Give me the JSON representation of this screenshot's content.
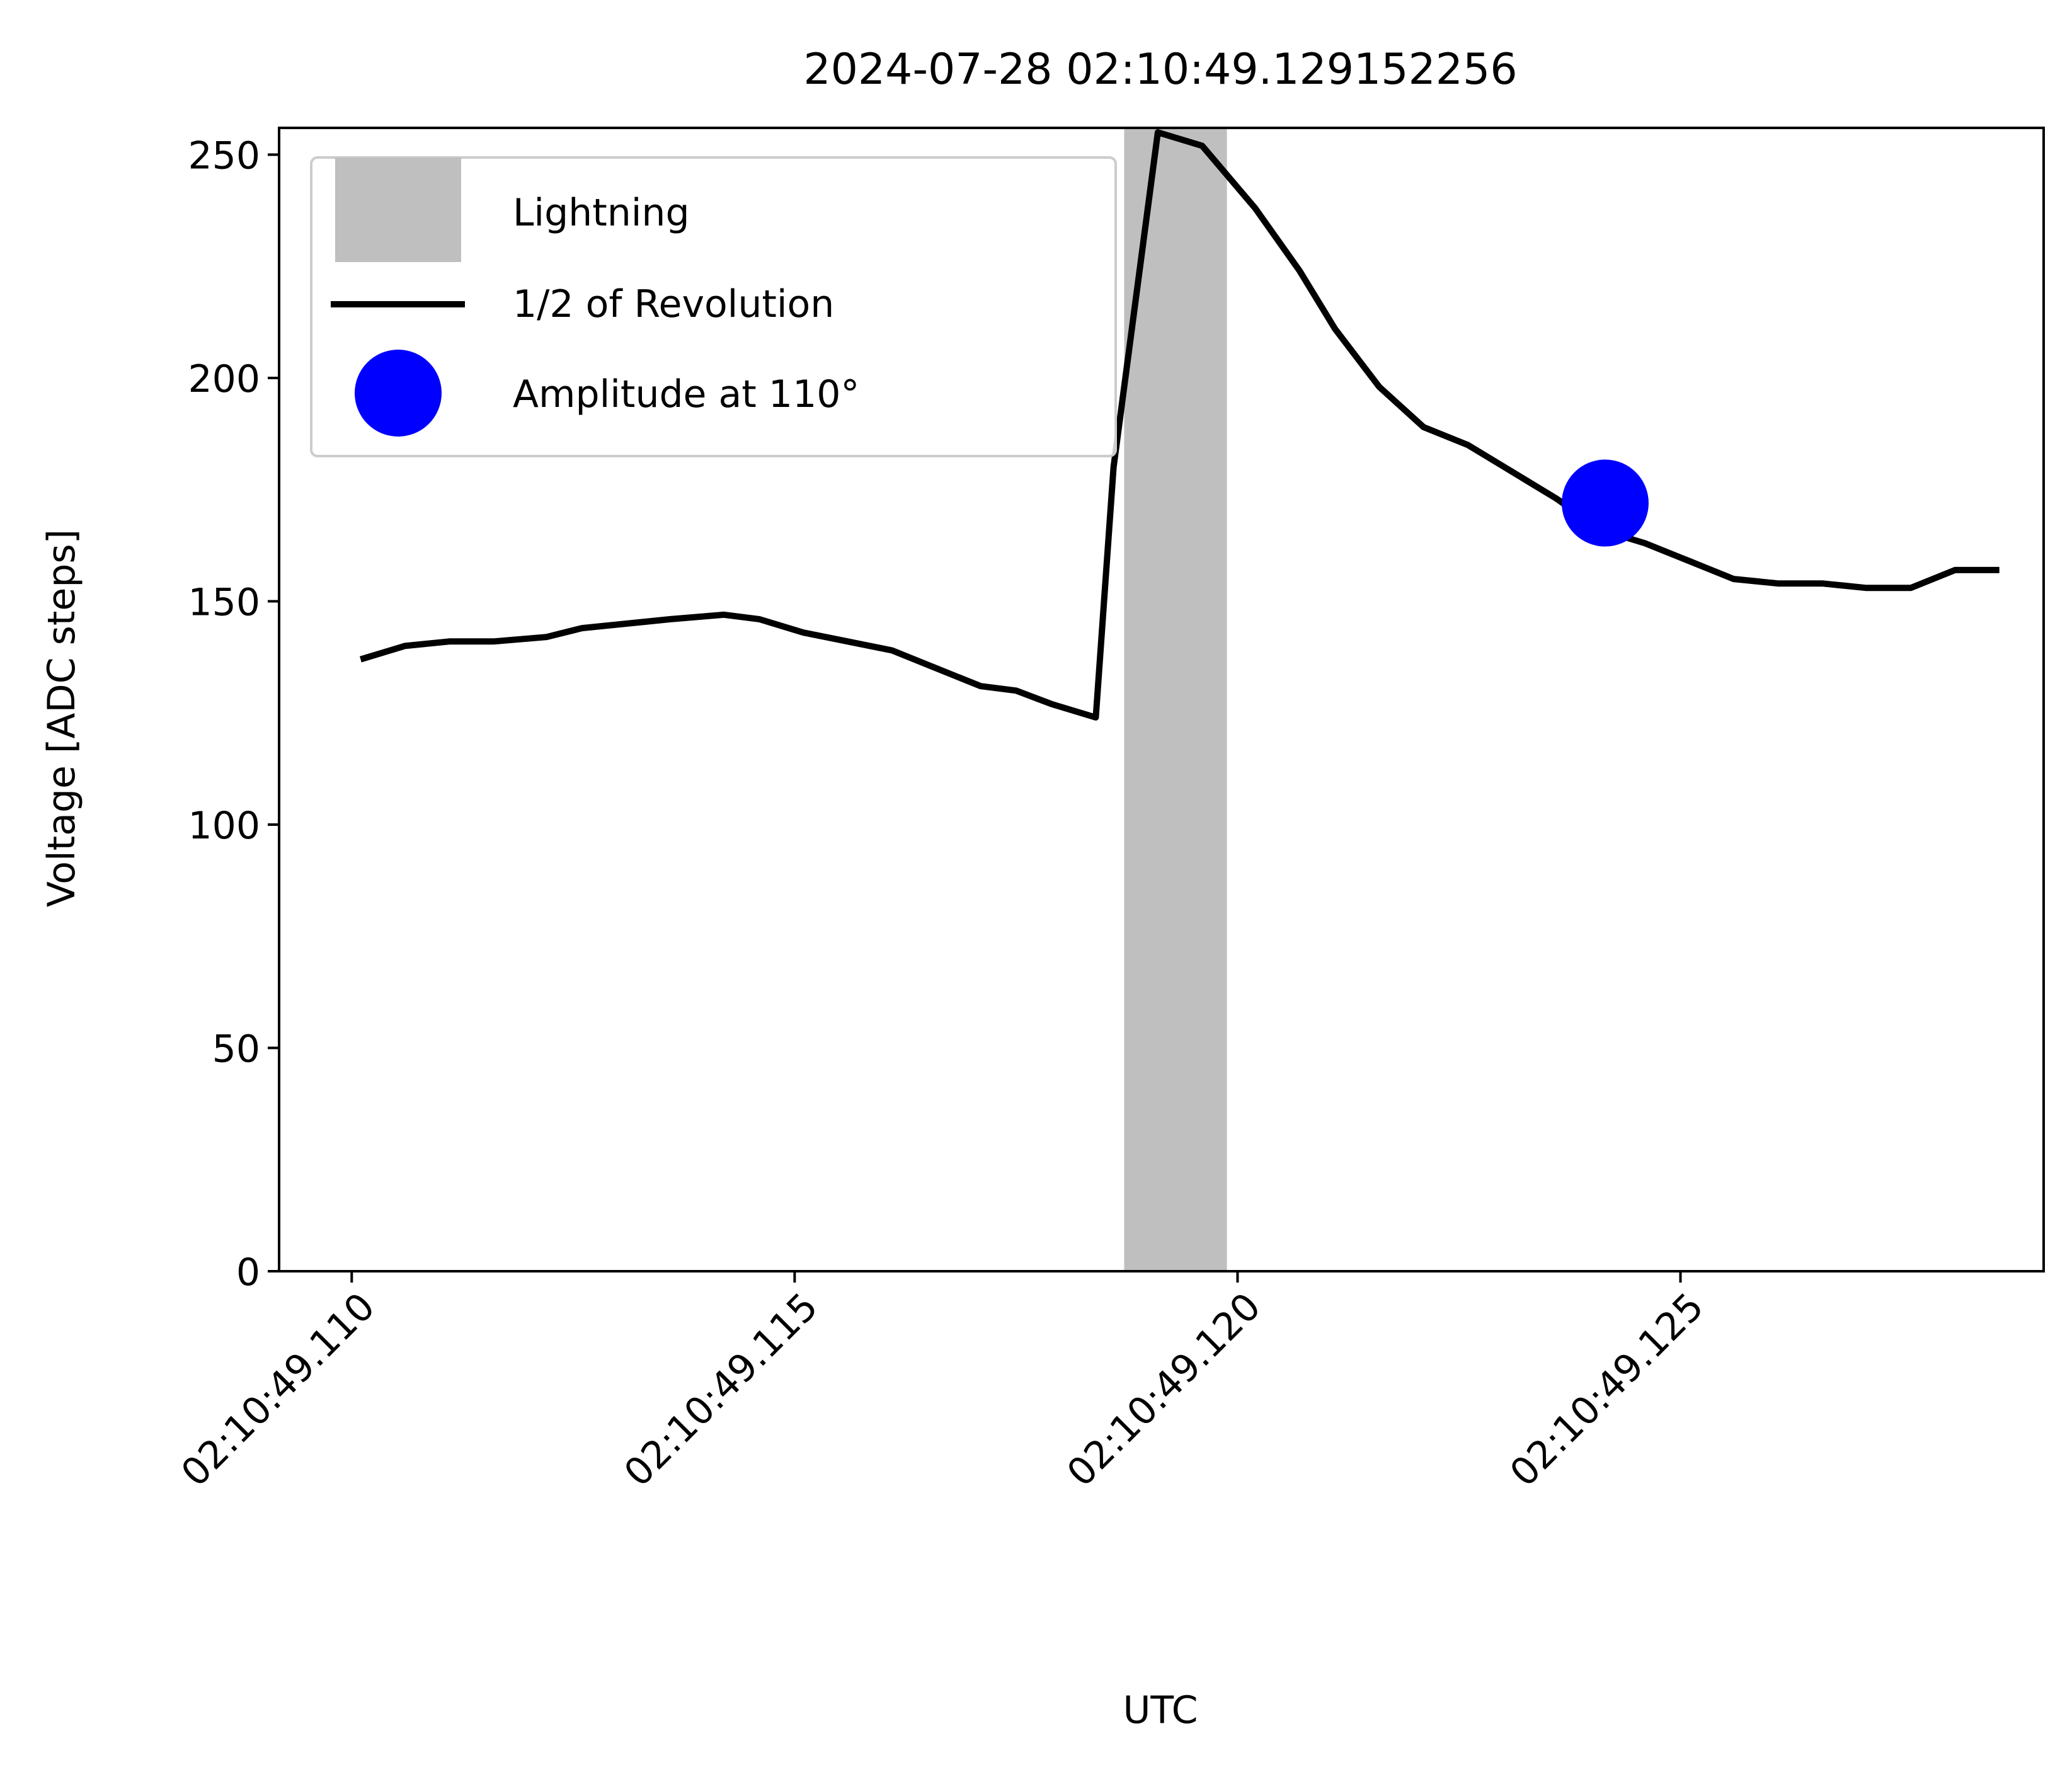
{
  "chart_data": {
    "type": "line",
    "title": "2024-07-28 02:10:49.129152256",
    "xlabel": "UTC",
    "ylabel": "Voltage  [ADC steps]",
    "x_unit": "ms after 02:10:49.100",
    "xlim": [
      9.18,
      29.1
    ],
    "ylim": [
      0,
      256
    ],
    "grid": false,
    "legend_position": "upper left",
    "x_ticks": [
      {
        "value": 10,
        "label": "02:10:49.110"
      },
      {
        "value": 15,
        "label": "02:10:49.115"
      },
      {
        "value": 20,
        "label": "02:10:49.120"
      },
      {
        "value": 25,
        "label": "02:10:49.125"
      }
    ],
    "y_ticks": [
      0,
      50,
      100,
      150,
      200,
      250
    ],
    "lightning_span": {
      "name": "Lightning",
      "x_start": 18.72,
      "x_end": 19.88,
      "color": "#bfbfbf"
    },
    "series": [
      {
        "name": "1/2 of Revolution",
        "color": "#000000",
        "x": [
          10.1,
          10.6,
          11.1,
          11.6,
          12.2,
          12.6,
          13.1,
          13.6,
          14.2,
          14.6,
          15.1,
          15.6,
          16.1,
          16.6,
          17.1,
          17.5,
          17.9,
          18.4,
          18.6,
          19.1,
          19.6,
          20.2,
          20.7,
          21.1,
          21.6,
          22.1,
          22.6,
          23.1,
          23.6,
          24.1,
          24.6,
          25.1,
          25.6,
          26.1,
          26.6,
          27.1,
          27.6,
          28.1,
          28.6
        ],
        "y": [
          137,
          140,
          141,
          141,
          142,
          144,
          145,
          146,
          147,
          146,
          143,
          141,
          139,
          135,
          131,
          130,
          127,
          124,
          180,
          255,
          252,
          238,
          224,
          211,
          198,
          189,
          185,
          179,
          173,
          166,
          163,
          159,
          155,
          154,
          154,
          153,
          153,
          157,
          157
        ]
      }
    ],
    "marker": {
      "name": "Amplitude at 110°",
      "x": 24.15,
      "y": 172,
      "color": "#0000ff"
    }
  }
}
